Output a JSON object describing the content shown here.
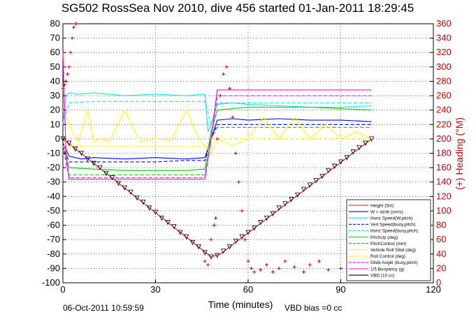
{
  "chart_data": {
    "type": "line",
    "title": "SG502 RossSea Nov 2010, dive 456 started 01-Jan-2011 18:29:45",
    "xlabel": "Time (minutes)",
    "ylabel_right": "(+) Heading (°M)",
    "xlim": [
      0,
      120
    ],
    "ylim": [
      -100,
      80
    ],
    "ylim_right": [
      0,
      360
    ],
    "grid": true,
    "legend_position": "bottom-right",
    "footer_left": "06-Oct-2011 10:59:59",
    "footer_right": "VBD bias =0 cc",
    "x_ticks": [
      "0",
      "30",
      "60",
      "90",
      "120"
    ],
    "y_ticks": [
      "80",
      "70",
      "60",
      "50",
      "40",
      "30",
      "20",
      "10",
      "0",
      "-10",
      "-20",
      "-30",
      "-40",
      "-50",
      "-60",
      "-70",
      "-80",
      "-90",
      "-100"
    ],
    "y_right_ticks": [
      "360",
      "340",
      "320",
      "300",
      "280",
      "260",
      "240",
      "220",
      "200",
      "180",
      "160",
      "140",
      "120",
      "100",
      "80",
      "60",
      "40",
      "20",
      "0"
    ],
    "series": [
      {
        "name": "Height (5m)",
        "color": "#ff0000",
        "style": "solid",
        "x": [
          0,
          48,
          51,
          100
        ],
        "y": [
          0,
          -82,
          -80,
          0
        ]
      },
      {
        "name": "W = dz/dt (cm/s)",
        "color": "#0000ff",
        "style": "solid",
        "x": [
          0,
          2,
          6,
          10,
          20,
          30,
          40,
          46,
          48,
          50,
          55,
          60,
          70,
          80,
          90,
          100
        ],
        "y": [
          -3,
          -12,
          -14,
          -13,
          -14,
          -13,
          -14,
          -13,
          0,
          13,
          14,
          13,
          14,
          13,
          13,
          12
        ]
      },
      {
        "name": "Horiz Speed(W,pitch)",
        "color": "#00e5e5",
        "style": "solid",
        "x": [
          0,
          1,
          2,
          5,
          10,
          20,
          30,
          40,
          46,
          47,
          48,
          50,
          55,
          60,
          70,
          80,
          90,
          100
        ],
        "y": [
          10,
          30,
          32,
          31,
          32,
          30,
          31,
          30,
          31,
          5,
          10,
          24,
          25,
          24,
          23,
          22,
          22,
          23
        ]
      },
      {
        "name": "Vert Speed(buoy,pitch)",
        "color": "#0000ff",
        "style": "dashed",
        "x": [
          0,
          2,
          10,
          20,
          30,
          40,
          46,
          48,
          50,
          60,
          70,
          80,
          90,
          100
        ],
        "y": [
          -5,
          -16,
          -16,
          -16,
          -16,
          -15,
          -15,
          0,
          10,
          10,
          10,
          10,
          10,
          10
        ]
      },
      {
        "name": "Horiz Speed(buoy,pitch)",
        "color": "#00e5e5",
        "style": "dashed",
        "x": [
          0,
          2,
          10,
          20,
          30,
          40,
          46,
          48,
          50,
          60,
          70,
          80,
          90,
          100
        ],
        "y": [
          10,
          25,
          26,
          26,
          26,
          26,
          26,
          10,
          25,
          25,
          25,
          25,
          25,
          25
        ]
      },
      {
        "name": "PitchUp (deg)",
        "color": "#00cc00",
        "style": "solid",
        "x": [
          0,
          2,
          10,
          20,
          30,
          40,
          46,
          48,
          50,
          55,
          60,
          70,
          80,
          90,
          100
        ],
        "y": [
          -5,
          -20,
          -21,
          -22,
          -22,
          -22,
          -21,
          5,
          20,
          21,
          22,
          22,
          22,
          21,
          20
        ]
      },
      {
        "name": "PitchControl (mm)",
        "color": "#00cc00",
        "style": "dashed",
        "x": [
          0,
          2,
          46,
          48,
          50,
          100
        ],
        "y": [
          -5,
          -25,
          -25,
          0,
          8,
          8
        ]
      },
      {
        "name": "Vehicle Roll Stbd (deg)",
        "color": "#ffff00",
        "style": "solid",
        "x": [
          0,
          3,
          5,
          8,
          10,
          12,
          15,
          20,
          25,
          30,
          35,
          40,
          44,
          46,
          48,
          50,
          55,
          60,
          65,
          70,
          75,
          80,
          85,
          90,
          95,
          100
        ],
        "y": [
          20,
          5,
          -2,
          20,
          -2,
          0,
          -2,
          20,
          -2,
          0,
          -1,
          20,
          0,
          -5,
          -10,
          0,
          -5,
          0,
          15,
          0,
          15,
          0,
          10,
          0,
          5,
          0
        ]
      },
      {
        "name": "Roll Control (deg)",
        "color": "#ffff00",
        "style": "dashed",
        "x": [
          0,
          46,
          48,
          100
        ],
        "y": [
          -5,
          -5,
          0,
          0
        ]
      },
      {
        "name": "Glide Angle (buoy,pitch)",
        "color": "#ff00ff",
        "style": "dashed",
        "x": [
          0,
          2,
          46,
          48,
          50,
          100
        ],
        "y": [
          -5,
          -27,
          -27,
          0,
          30,
          30
        ]
      },
      {
        "name": "1/5 Buoyancy (g)",
        "color": "#ff00ff",
        "style": "solid",
        "x": [
          0,
          1,
          2,
          46,
          48,
          50,
          100
        ],
        "y": [
          60,
          -10,
          -28,
          -28,
          0,
          34,
          34
        ]
      },
      {
        "name": "VBD (10 cc)",
        "color": "#000000",
        "style": "solid",
        "x": [
          0,
          100
        ],
        "y": [
          -100,
          -100
        ]
      }
    ],
    "heading_axis": "right",
    "heading": {
      "name": "Heading",
      "color": "#cc0000",
      "marker": "+",
      "x": [
        0,
        0.5,
        1,
        1.5,
        2,
        2.5,
        3,
        3.5,
        4,
        4.5,
        46,
        47,
        48,
        49,
        49.5,
        50,
        51,
        52,
        53,
        54,
        55,
        56,
        57,
        58,
        59,
        60,
        61,
        62,
        64,
        66,
        68,
        70,
        72,
        75,
        78,
        80,
        83,
        86,
        90,
        93,
        96,
        98,
        100,
        102,
        105,
        110,
        115
      ],
      "y": [
        270,
        275,
        280,
        290,
        300,
        320,
        340,
        355,
        360,
        360,
        30,
        25,
        60,
        80,
        90,
        200,
        260,
        290,
        300,
        270,
        230,
        180,
        140,
        100,
        60,
        30,
        20,
        15,
        18,
        25,
        15,
        20,
        30,
        22,
        15,
        25,
        30,
        18,
        20,
        28,
        15,
        20,
        25,
        18,
        20,
        25,
        15
      ]
    },
    "markers": {
      "name": "Height markers",
      "marker": "triangle",
      "color": "#000000",
      "x": [
        0,
        2,
        4,
        6,
        8,
        10,
        12,
        14,
        16,
        18,
        20,
        22,
        24,
        26,
        28,
        30,
        32,
        34,
        36,
        38,
        40,
        42,
        44,
        46,
        48,
        50,
        52,
        54,
        56,
        58,
        60,
        62,
        64,
        66,
        68,
        70,
        72,
        74,
        76,
        78,
        80,
        82,
        84,
        86,
        88,
        90,
        92,
        94,
        96,
        98,
        100
      ],
      "y": [
        0,
        -3,
        -7,
        -10,
        -14,
        -17,
        -20,
        -24,
        -27,
        -31,
        -34,
        -37,
        -41,
        -44,
        -48,
        -51,
        -55,
        -58,
        -61,
        -65,
        -68,
        -72,
        -75,
        -79,
        -82,
        -81,
        -78,
        -75,
        -71,
        -68,
        -65,
        -62,
        -58,
        -55,
        -52,
        -48,
        -45,
        -42,
        -39,
        -35,
        -32,
        -29,
        -26,
        -22,
        -19,
        -16,
        -13,
        -9,
        -6,
        -3,
        0
      ]
    }
  }
}
